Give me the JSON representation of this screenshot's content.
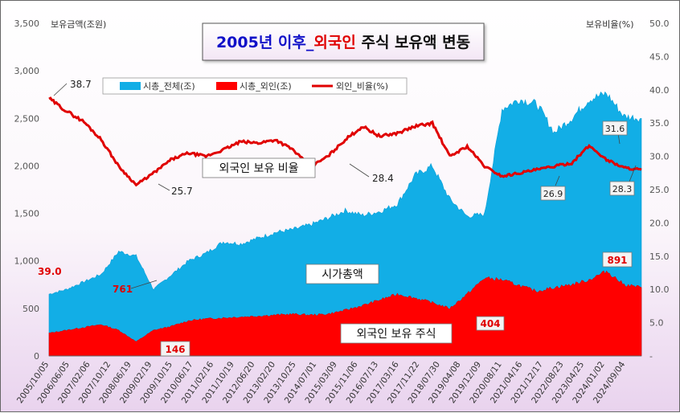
{
  "chart_data": {
    "type": "area",
    "title": {
      "year": "2005년",
      "part1": " 이후_",
      "part2": "외국인",
      "part3": " 주식 보유액 변동"
    },
    "ylabel_left": "보유금액(조원)",
    "ylabel_right": "보유비율(%)",
    "ylim_left": [
      0,
      3500
    ],
    "ylim_right": [
      0,
      50
    ],
    "yticks_left": [
      "0",
      "500",
      "1,000",
      "1,500",
      "2,000",
      "2,500",
      "3,000",
      "3,500"
    ],
    "yticks_right": [
      "-",
      "5.0",
      "10.0",
      "15.0",
      "20.0",
      "25.0",
      "30.0",
      "35.0",
      "40.0",
      "45.0",
      "50.0"
    ],
    "xticks": [
      "2005/10/05",
      "2006/06/05",
      "2007/02/06",
      "2007/10/12",
      "2008/06/19",
      "2009/02/19",
      "2009/10/15",
      "2010/06/17",
      "2011/02/16",
      "2011/10/19",
      "2012/06/20",
      "2013/02/20",
      "2013/10/25",
      "2014/07/01",
      "2015/03/09",
      "2015/11/06",
      "2016/07/13",
      "2017/03/16",
      "2017/11/22",
      "2018/07/30",
      "2019/04/08",
      "2019/12/09",
      "2020/08/11",
      "2021/04/16",
      "2021/12/17",
      "2022/08/23",
      "2023/04/25",
      "2024/01/02",
      "2024/09/04"
    ],
    "legend": {
      "total": "시총_전체(조)",
      "foreign": "시총_외인(조)",
      "ratio": "외인_비율(%)"
    },
    "series": [
      {
        "name": "시총_전체(조)",
        "color": "#12aee6",
        "values": [
          650,
          700,
          780,
          860,
          1100,
          1050,
          700,
          850,
          1000,
          1080,
          1200,
          1180,
          1240,
          1300,
          1330,
          1380,
          1450,
          1530,
          1480,
          1520,
          1600,
          1900,
          2000,
          1650,
          1470,
          1490,
          2600,
          2700,
          2650,
          2350,
          2500,
          2700,
          2760,
          2520,
          2500
        ]
      },
      {
        "name": "시총_외인(조)",
        "color": "#ff0000",
        "values": [
          240,
          270,
          300,
          330,
          270,
          150,
          270,
          310,
          370,
          390,
          400,
          410,
          420,
          430,
          440,
          430,
          440,
          480,
          530,
          590,
          650,
          610,
          560,
          500,
          650,
          820,
          800,
          740,
          680,
          720,
          750,
          800,
          891,
          750,
          720
        ]
      },
      {
        "name": "외인_비율(%)",
        "color": "#e00000",
        "values": [
          38.7,
          36.8,
          35.2,
          32.5,
          28.5,
          25.7,
          27.5,
          29.5,
          30.5,
          30.0,
          31.0,
          32.2,
          32.0,
          32.5,
          31.0,
          28.4,
          30.0,
          32.5,
          34.5,
          33.0,
          33.5,
          34.5,
          35.0,
          30.0,
          31.5,
          28.5,
          27.0,
          27.5,
          28.0,
          28.5,
          29.0,
          31.6,
          29.5,
          28.3,
          28.0
        ]
      }
    ],
    "annotations": {
      "ratio_start": "38.7",
      "ratio_2009": "25.7",
      "ratio_2015": "28.4",
      "ratio_2022": "26.9",
      "ratio_2024": "31.6",
      "ratio_end": "28.3",
      "foreign_start": "39.0",
      "foreign_2008": "761",
      "foreign_2009": "146",
      "foreign_2020": "404",
      "foreign_2024": "891",
      "text_ratio": "외국인 보유 비율",
      "text_total": "시가총액",
      "text_foreign": "외국인 보유 주식"
    }
  }
}
